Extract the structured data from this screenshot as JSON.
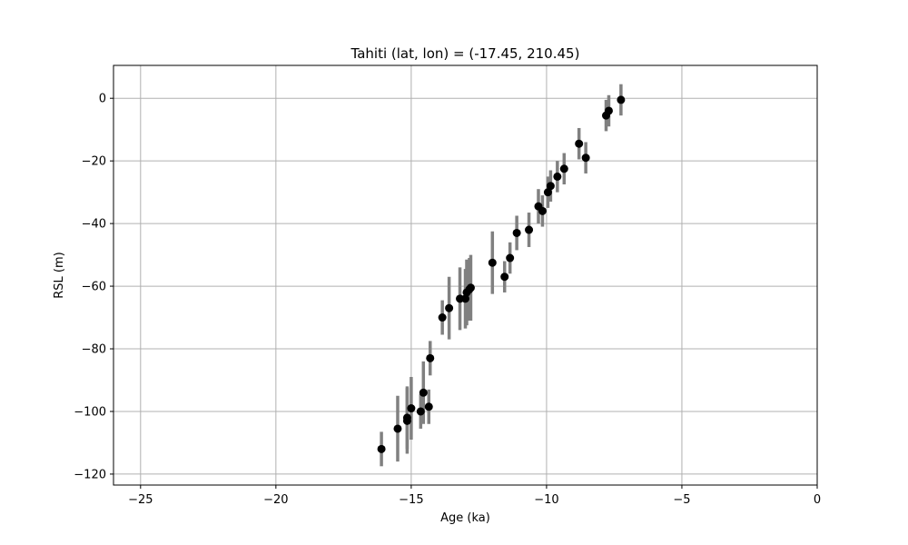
{
  "chart_data": {
    "type": "scatter",
    "title": "Tahiti (lat, lon) = (-17.45, 210.45)",
    "xlabel": "Age (ka)",
    "ylabel": "RSL (m)",
    "xlim": [
      -26,
      0
    ],
    "ylim": [
      -123.5,
      10.5
    ],
    "xticks": [
      -25,
      -20,
      -15,
      -10,
      -5,
      0
    ],
    "yticks": [
      -120,
      -100,
      -80,
      -60,
      -40,
      -20,
      0
    ],
    "grid": true,
    "error_bars": "vertical",
    "colors": {
      "points": "#000000",
      "error_bars": "#808080",
      "grid": "#b0b0b0",
      "axes": "#000000"
    },
    "points": [
      {
        "x": -16.1,
        "y": -112.0,
        "err": 5.5
      },
      {
        "x": -15.5,
        "y": -105.5,
        "err": 10.5
      },
      {
        "x": -15.15,
        "y": -103.0,
        "err": 10.5
      },
      {
        "x": -15.15,
        "y": -102.0,
        "err": 10.0
      },
      {
        "x": -15.0,
        "y": -99.0,
        "err": 10.0
      },
      {
        "x": -14.65,
        "y": -100.0,
        "err": 5.5
      },
      {
        "x": -14.55,
        "y": -94.0,
        "err": 10.0
      },
      {
        "x": -14.35,
        "y": -98.5,
        "err": 5.5
      },
      {
        "x": -14.3,
        "y": -83.0,
        "err": 5.5
      },
      {
        "x": -13.85,
        "y": -70.0,
        "err": 5.5
      },
      {
        "x": -13.6,
        "y": -67.0,
        "err": 10.0
      },
      {
        "x": -13.2,
        "y": -64.0,
        "err": 10.0
      },
      {
        "x": -13.0,
        "y": -64.0,
        "err": 9.5
      },
      {
        "x": -12.95,
        "y": -62.0,
        "err": 10.5
      },
      {
        "x": -12.85,
        "y": -61.0,
        "err": 10.0
      },
      {
        "x": -12.8,
        "y": -60.5,
        "err": 10.5
      },
      {
        "x": -12.0,
        "y": -52.5,
        "err": 10.0
      },
      {
        "x": -11.55,
        "y": -57.0,
        "err": 5.0
      },
      {
        "x": -11.35,
        "y": -51.0,
        "err": 5.0
      },
      {
        "x": -11.1,
        "y": -43.0,
        "err": 5.5
      },
      {
        "x": -10.65,
        "y": -42.0,
        "err": 5.5
      },
      {
        "x": -10.3,
        "y": -34.5,
        "err": 5.5
      },
      {
        "x": -10.15,
        "y": -36.0,
        "err": 5.0
      },
      {
        "x": -9.95,
        "y": -30.0,
        "err": 5.0
      },
      {
        "x": -9.85,
        "y": -28.0,
        "err": 5.0
      },
      {
        "x": -9.6,
        "y": -25.0,
        "err": 5.0
      },
      {
        "x": -9.35,
        "y": -22.5,
        "err": 5.0
      },
      {
        "x": -8.8,
        "y": -14.5,
        "err": 5.0
      },
      {
        "x": -8.55,
        "y": -19.0,
        "err": 5.0
      },
      {
        "x": -7.8,
        "y": -5.5,
        "err": 5.0
      },
      {
        "x": -7.7,
        "y": -4.0,
        "err": 5.0
      },
      {
        "x": -7.25,
        "y": -0.5,
        "err": 5.0
      }
    ]
  }
}
